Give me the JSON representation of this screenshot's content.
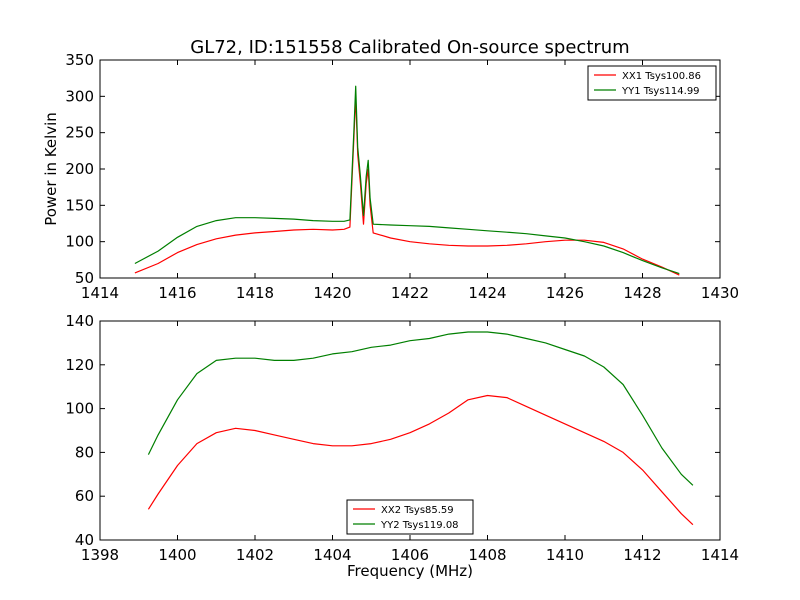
{
  "figure": {
    "title": "GL72, ID:151558 Calibrated On-source spectrum"
  },
  "chart_data": [
    {
      "type": "line",
      "title": "GL72, ID:151558 Calibrated On-source spectrum",
      "xlabel": "",
      "ylabel": "Power in Kelvin",
      "xlim": [
        1414,
        1430
      ],
      "ylim": [
        50,
        350
      ],
      "xticks": [
        1414,
        1416,
        1418,
        1420,
        1422,
        1424,
        1426,
        1428,
        1430
      ],
      "yticks": [
        50,
        100,
        150,
        200,
        250,
        300,
        350
      ],
      "grid": false,
      "legend_position": "top-right",
      "series": [
        {
          "name": "XX1 Tsys100.86",
          "color": "#ff0000",
          "x": [
            1414.9,
            1415.5,
            1416,
            1416.5,
            1417,
            1417.5,
            1418,
            1418.5,
            1419,
            1419.5,
            1420,
            1420.3,
            1420.45,
            1420.55,
            1420.6,
            1420.65,
            1420.72,
            1420.8,
            1420.87,
            1420.92,
            1420.97,
            1421.05,
            1421.5,
            1422,
            1422.5,
            1423,
            1423.5,
            1424,
            1424.5,
            1425,
            1425.5,
            1426,
            1426.5,
            1427,
            1427.5,
            1428,
            1428.5,
            1428.95
          ],
          "y": [
            57,
            70,
            85,
            96,
            104,
            109,
            112,
            114,
            116,
            117,
            116,
            117,
            120,
            240,
            300,
            220,
            180,
            124,
            180,
            200,
            150,
            112,
            105,
            100,
            97,
            95,
            94,
            94,
            95,
            97,
            100,
            102,
            102,
            99,
            90,
            76,
            65,
            54
          ]
        },
        {
          "name": "YY1 Tsys114.99",
          "color": "#007f00",
          "x": [
            1414.9,
            1415.5,
            1416,
            1416.5,
            1417,
            1417.5,
            1418,
            1418.5,
            1419,
            1419.5,
            1420,
            1420.3,
            1420.45,
            1420.55,
            1420.6,
            1420.65,
            1420.72,
            1420.8,
            1420.87,
            1420.92,
            1420.97,
            1421.05,
            1421.5,
            1422,
            1422.5,
            1423,
            1423.5,
            1424,
            1424.5,
            1425,
            1425.5,
            1426,
            1426.5,
            1427,
            1427.5,
            1428,
            1428.5,
            1428.95
          ],
          "y": [
            70,
            87,
            106,
            121,
            129,
            133,
            133,
            132,
            131,
            129,
            128,
            128,
            130,
            250,
            314,
            230,
            190,
            136,
            190,
            212,
            160,
            124,
            123,
            122,
            121,
            119,
            117,
            115,
            113,
            111,
            108,
            105,
            100,
            94,
            85,
            74,
            64,
            56
          ]
        }
      ]
    },
    {
      "type": "line",
      "title": "",
      "xlabel": "Frequency (MHz)",
      "ylabel": "",
      "xlim": [
        1398,
        1414
      ],
      "ylim": [
        40,
        140
      ],
      "xticks": [
        1398,
        1400,
        1402,
        1404,
        1406,
        1408,
        1410,
        1412,
        1414
      ],
      "yticks": [
        40,
        60,
        80,
        100,
        120,
        140
      ],
      "grid": false,
      "legend_position": "bottom-center",
      "series": [
        {
          "name": "XX2 Tsys85.59",
          "color": "#ff0000",
          "x": [
            1399.25,
            1399.5,
            1400,
            1400.5,
            1401,
            1401.5,
            1402,
            1402.5,
            1403,
            1403.5,
            1404,
            1404.5,
            1405,
            1405.5,
            1406,
            1406.5,
            1407,
            1407.5,
            1408,
            1408.5,
            1409,
            1409.5,
            1410,
            1410.5,
            1411,
            1411.5,
            1412,
            1412.5,
            1413,
            1413.3
          ],
          "y": [
            54,
            61,
            74,
            84,
            89,
            91,
            90,
            88,
            86,
            84,
            83,
            83,
            84,
            86,
            89,
            93,
            98,
            104,
            106,
            105,
            101,
            97,
            93,
            89,
            85,
            80,
            72,
            62,
            52,
            47
          ]
        },
        {
          "name": "YY2 Tsys119.08",
          "color": "#007f00",
          "x": [
            1399.25,
            1399.5,
            1400,
            1400.5,
            1401,
            1401.5,
            1402,
            1402.5,
            1403,
            1403.5,
            1404,
            1404.5,
            1405,
            1405.5,
            1406,
            1406.5,
            1407,
            1407.5,
            1408,
            1408.5,
            1409,
            1409.5,
            1410,
            1410.5,
            1411,
            1411.5,
            1412,
            1412.5,
            1413,
            1413.3
          ],
          "y": [
            79,
            88,
            104,
            116,
            122,
            123,
            123,
            122,
            122,
            123,
            125,
            126,
            128,
            129,
            131,
            132,
            134,
            135,
            135,
            134,
            132,
            130,
            127,
            124,
            119,
            111,
            97,
            82,
            70,
            65
          ]
        }
      ]
    }
  ]
}
